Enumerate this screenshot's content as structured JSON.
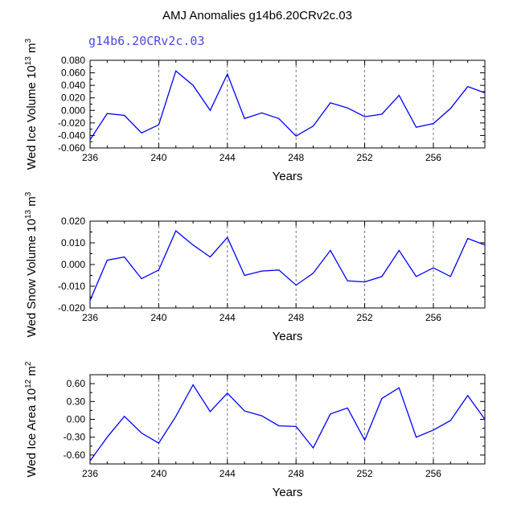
{
  "title": "AMJ Anomalies g14b6.20CRv2c.03",
  "subtitle": "g14b6.20CRv2c.03",
  "colors": {
    "line": "#0000ff",
    "subtitle": "#4a4ae0"
  },
  "chart_data": [
    {
      "type": "line",
      "ylabel": "Wed Ice Volume 10",
      "ylabel_exp": "13",
      "ylabel_unit": " m",
      "ylabel_unit_exp": "3",
      "xlabel": "Years",
      "xlim": [
        236,
        259
      ],
      "ylim": [
        -0.06,
        0.08
      ],
      "yticks": [
        -0.06,
        -0.04,
        -0.02,
        0.0,
        0.02,
        0.04,
        0.06,
        0.08
      ],
      "ytick_labels": [
        "-0.060",
        "-0.040",
        "-0.020",
        "0.000",
        "0.020",
        "0.040",
        "0.060",
        "0.080"
      ],
      "xticks": [
        236,
        240,
        244,
        248,
        252,
        256
      ],
      "xtick_labels": [
        "236",
        "240",
        "244",
        "248",
        "252",
        "256"
      ],
      "ref_lines": [
        240,
        244,
        248,
        252,
        256
      ],
      "x": [
        236,
        237,
        238,
        239,
        240,
        241,
        242,
        243,
        244,
        245,
        246,
        247,
        248,
        249,
        250,
        251,
        252,
        253,
        254,
        255,
        256,
        257,
        258,
        259
      ],
      "y": [
        -0.047,
        -0.005,
        -0.008,
        -0.036,
        -0.023,
        0.063,
        0.04,
        0.0,
        0.058,
        -0.013,
        -0.004,
        -0.013,
        -0.041,
        -0.025,
        0.012,
        0.004,
        -0.01,
        -0.006,
        0.024,
        -0.027,
        -0.021,
        0.003,
        0.038,
        0.028
      ]
    },
    {
      "type": "line",
      "ylabel": "Wed Snow Volume 10",
      "ylabel_exp": "13",
      "ylabel_unit": " m",
      "ylabel_unit_exp": "3",
      "xlabel": "Years",
      "xlim": [
        236,
        259
      ],
      "ylim": [
        -0.02,
        0.02
      ],
      "yticks": [
        -0.02,
        -0.01,
        0.0,
        0.01,
        0.02
      ],
      "ytick_labels": [
        "-0.020",
        "-0.010",
        "0.000",
        "0.010",
        "0.020"
      ],
      "xticks": [
        236,
        240,
        244,
        248,
        252,
        256
      ],
      "xtick_labels": [
        "236",
        "240",
        "244",
        "248",
        "252",
        "256"
      ],
      "ref_lines": [
        240,
        244,
        248,
        252,
        256
      ],
      "x": [
        236,
        237,
        238,
        239,
        240,
        241,
        242,
        243,
        244,
        245,
        246,
        247,
        248,
        249,
        250,
        251,
        252,
        253,
        254,
        255,
        256,
        257,
        258,
        259
      ],
      "y": [
        -0.0165,
        0.002,
        0.0035,
        -0.0065,
        -0.0025,
        0.0155,
        0.009,
        0.0035,
        0.0125,
        -0.005,
        -0.003,
        -0.0025,
        -0.0095,
        -0.004,
        0.0065,
        -0.0075,
        -0.008,
        -0.0055,
        0.0065,
        -0.0055,
        -0.0015,
        -0.0055,
        0.012,
        0.009
      ]
    },
    {
      "type": "line",
      "ylabel": "Wed Ice Area 10",
      "ylabel_exp": "12",
      "ylabel_unit": " m",
      "ylabel_unit_exp": "2",
      "xlabel": "Years",
      "xlim": [
        236,
        259
      ],
      "ylim": [
        -0.75,
        0.75
      ],
      "yticks": [
        -0.6,
        -0.3,
        0.0,
        0.3,
        0.6
      ],
      "ytick_labels": [
        "-0.60",
        "-0.30",
        "0.00",
        "0.30",
        "0.60"
      ],
      "xticks": [
        236,
        240,
        244,
        248,
        252,
        256
      ],
      "xtick_labels": [
        "236",
        "240",
        "244",
        "248",
        "252",
        "256"
      ],
      "ref_lines": [
        240,
        244,
        248,
        252,
        256
      ],
      "x": [
        236,
        237,
        238,
        239,
        240,
        241,
        242,
        243,
        244,
        245,
        246,
        247,
        248,
        249,
        250,
        251,
        252,
        253,
        254,
        255,
        256,
        257,
        258,
        259
      ],
      "y": [
        -0.7,
        -0.3,
        0.05,
        -0.23,
        -0.4,
        0.05,
        0.58,
        0.13,
        0.44,
        0.14,
        0.06,
        -0.11,
        -0.12,
        -0.48,
        0.09,
        0.19,
        -0.35,
        0.35,
        0.53,
        -0.3,
        -0.18,
        -0.02,
        0.4,
        0.0
      ]
    }
  ]
}
